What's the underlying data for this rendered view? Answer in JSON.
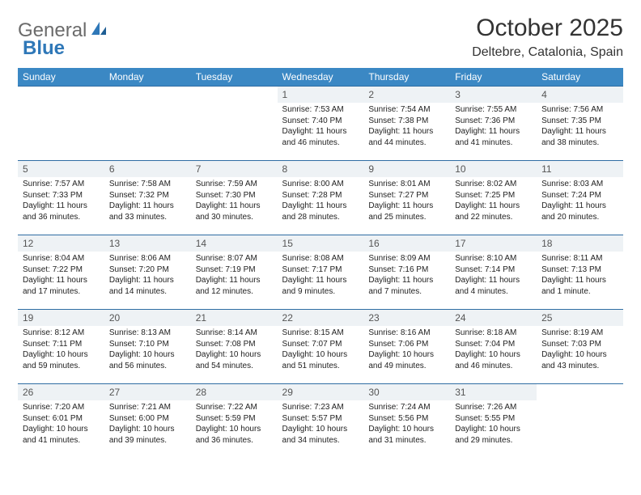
{
  "brand": {
    "general": "General",
    "blue": "Blue"
  },
  "title": "October 2025",
  "location": "Deltebre, Catalonia, Spain",
  "colors": {
    "header_bg": "#3b88c4",
    "header_text": "#ffffff",
    "row_border": "#2f6da3",
    "daynum_bg": "#eef2f5",
    "logo_gray": "#6b6b6b",
    "logo_blue": "#2f78b8"
  },
  "day_headers": [
    "Sunday",
    "Monday",
    "Tuesday",
    "Wednesday",
    "Thursday",
    "Friday",
    "Saturday"
  ],
  "weeks": [
    [
      {
        "n": "",
        "sr": "",
        "ss": "",
        "dl": ""
      },
      {
        "n": "",
        "sr": "",
        "ss": "",
        "dl": ""
      },
      {
        "n": "",
        "sr": "",
        "ss": "",
        "dl": ""
      },
      {
        "n": "1",
        "sr": "Sunrise: 7:53 AM",
        "ss": "Sunset: 7:40 PM",
        "dl": "Daylight: 11 hours and 46 minutes."
      },
      {
        "n": "2",
        "sr": "Sunrise: 7:54 AM",
        "ss": "Sunset: 7:38 PM",
        "dl": "Daylight: 11 hours and 44 minutes."
      },
      {
        "n": "3",
        "sr": "Sunrise: 7:55 AM",
        "ss": "Sunset: 7:36 PM",
        "dl": "Daylight: 11 hours and 41 minutes."
      },
      {
        "n": "4",
        "sr": "Sunrise: 7:56 AM",
        "ss": "Sunset: 7:35 PM",
        "dl": "Daylight: 11 hours and 38 minutes."
      }
    ],
    [
      {
        "n": "5",
        "sr": "Sunrise: 7:57 AM",
        "ss": "Sunset: 7:33 PM",
        "dl": "Daylight: 11 hours and 36 minutes."
      },
      {
        "n": "6",
        "sr": "Sunrise: 7:58 AM",
        "ss": "Sunset: 7:32 PM",
        "dl": "Daylight: 11 hours and 33 minutes."
      },
      {
        "n": "7",
        "sr": "Sunrise: 7:59 AM",
        "ss": "Sunset: 7:30 PM",
        "dl": "Daylight: 11 hours and 30 minutes."
      },
      {
        "n": "8",
        "sr": "Sunrise: 8:00 AM",
        "ss": "Sunset: 7:28 PM",
        "dl": "Daylight: 11 hours and 28 minutes."
      },
      {
        "n": "9",
        "sr": "Sunrise: 8:01 AM",
        "ss": "Sunset: 7:27 PM",
        "dl": "Daylight: 11 hours and 25 minutes."
      },
      {
        "n": "10",
        "sr": "Sunrise: 8:02 AM",
        "ss": "Sunset: 7:25 PM",
        "dl": "Daylight: 11 hours and 22 minutes."
      },
      {
        "n": "11",
        "sr": "Sunrise: 8:03 AM",
        "ss": "Sunset: 7:24 PM",
        "dl": "Daylight: 11 hours and 20 minutes."
      }
    ],
    [
      {
        "n": "12",
        "sr": "Sunrise: 8:04 AM",
        "ss": "Sunset: 7:22 PM",
        "dl": "Daylight: 11 hours and 17 minutes."
      },
      {
        "n": "13",
        "sr": "Sunrise: 8:06 AM",
        "ss": "Sunset: 7:20 PM",
        "dl": "Daylight: 11 hours and 14 minutes."
      },
      {
        "n": "14",
        "sr": "Sunrise: 8:07 AM",
        "ss": "Sunset: 7:19 PM",
        "dl": "Daylight: 11 hours and 12 minutes."
      },
      {
        "n": "15",
        "sr": "Sunrise: 8:08 AM",
        "ss": "Sunset: 7:17 PM",
        "dl": "Daylight: 11 hours and 9 minutes."
      },
      {
        "n": "16",
        "sr": "Sunrise: 8:09 AM",
        "ss": "Sunset: 7:16 PM",
        "dl": "Daylight: 11 hours and 7 minutes."
      },
      {
        "n": "17",
        "sr": "Sunrise: 8:10 AM",
        "ss": "Sunset: 7:14 PM",
        "dl": "Daylight: 11 hours and 4 minutes."
      },
      {
        "n": "18",
        "sr": "Sunrise: 8:11 AM",
        "ss": "Sunset: 7:13 PM",
        "dl": "Daylight: 11 hours and 1 minute."
      }
    ],
    [
      {
        "n": "19",
        "sr": "Sunrise: 8:12 AM",
        "ss": "Sunset: 7:11 PM",
        "dl": "Daylight: 10 hours and 59 minutes."
      },
      {
        "n": "20",
        "sr": "Sunrise: 8:13 AM",
        "ss": "Sunset: 7:10 PM",
        "dl": "Daylight: 10 hours and 56 minutes."
      },
      {
        "n": "21",
        "sr": "Sunrise: 8:14 AM",
        "ss": "Sunset: 7:08 PM",
        "dl": "Daylight: 10 hours and 54 minutes."
      },
      {
        "n": "22",
        "sr": "Sunrise: 8:15 AM",
        "ss": "Sunset: 7:07 PM",
        "dl": "Daylight: 10 hours and 51 minutes."
      },
      {
        "n": "23",
        "sr": "Sunrise: 8:16 AM",
        "ss": "Sunset: 7:06 PM",
        "dl": "Daylight: 10 hours and 49 minutes."
      },
      {
        "n": "24",
        "sr": "Sunrise: 8:18 AM",
        "ss": "Sunset: 7:04 PM",
        "dl": "Daylight: 10 hours and 46 minutes."
      },
      {
        "n": "25",
        "sr": "Sunrise: 8:19 AM",
        "ss": "Sunset: 7:03 PM",
        "dl": "Daylight: 10 hours and 43 minutes."
      }
    ],
    [
      {
        "n": "26",
        "sr": "Sunrise: 7:20 AM",
        "ss": "Sunset: 6:01 PM",
        "dl": "Daylight: 10 hours and 41 minutes."
      },
      {
        "n": "27",
        "sr": "Sunrise: 7:21 AM",
        "ss": "Sunset: 6:00 PM",
        "dl": "Daylight: 10 hours and 39 minutes."
      },
      {
        "n": "28",
        "sr": "Sunrise: 7:22 AM",
        "ss": "Sunset: 5:59 PM",
        "dl": "Daylight: 10 hours and 36 minutes."
      },
      {
        "n": "29",
        "sr": "Sunrise: 7:23 AM",
        "ss": "Sunset: 5:57 PM",
        "dl": "Daylight: 10 hours and 34 minutes."
      },
      {
        "n": "30",
        "sr": "Sunrise: 7:24 AM",
        "ss": "Sunset: 5:56 PM",
        "dl": "Daylight: 10 hours and 31 minutes."
      },
      {
        "n": "31",
        "sr": "Sunrise: 7:26 AM",
        "ss": "Sunset: 5:55 PM",
        "dl": "Daylight: 10 hours and 29 minutes."
      },
      {
        "n": "",
        "sr": "",
        "ss": "",
        "dl": ""
      }
    ]
  ]
}
